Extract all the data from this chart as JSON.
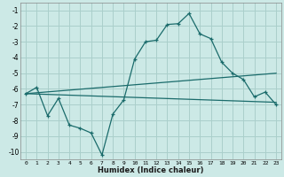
{
  "xlabel": "Humidex (Indice chaleur)",
  "bg_color": "#cce9e6",
  "grid_color": "#aacfcb",
  "line_color": "#1a6b6b",
  "xlim": [
    -0.5,
    23.5
  ],
  "ylim": [
    -10.5,
    -0.5
  ],
  "yticks": [
    -10,
    -9,
    -8,
    -7,
    -6,
    -5,
    -4,
    -3,
    -2,
    -1
  ],
  "xticks": [
    0,
    1,
    2,
    3,
    4,
    5,
    6,
    7,
    8,
    9,
    10,
    11,
    12,
    13,
    14,
    15,
    16,
    17,
    18,
    19,
    20,
    21,
    22,
    23
  ],
  "series1_x": [
    0,
    1,
    2,
    3,
    4,
    5,
    6,
    7,
    8,
    9,
    10,
    11,
    12,
    13,
    14,
    15,
    16,
    17,
    18,
    19,
    20,
    21,
    22,
    23
  ],
  "series1_y": [
    -6.3,
    -5.9,
    -7.7,
    -6.6,
    -8.3,
    -8.5,
    -8.8,
    -10.2,
    -7.6,
    -6.7,
    -4.1,
    -3.0,
    -2.9,
    -1.9,
    -1.85,
    -1.2,
    -2.5,
    -2.8,
    -4.3,
    -5.0,
    -5.4,
    -6.5,
    -6.2,
    -7.0
  ],
  "series2_x": [
    0,
    23
  ],
  "series2_y": [
    -6.3,
    -6.85
  ],
  "series3_x": [
    0,
    23
  ],
  "series3_y": [
    -6.3,
    -5.0
  ]
}
